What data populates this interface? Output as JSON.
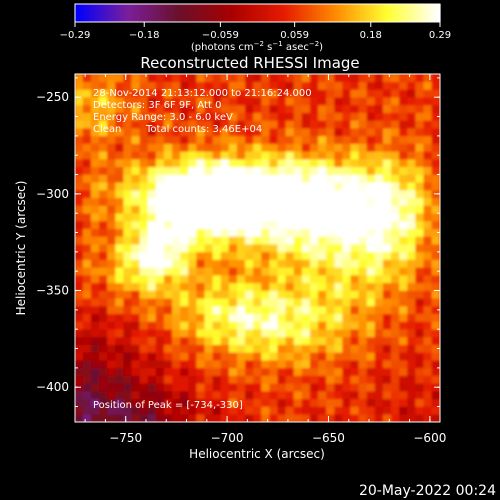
{
  "chart_data": {
    "type": "heatmap",
    "title": "Reconstructed RHESSI Image",
    "xlabel": "Heliocentric X (arcsec)",
    "ylabel": "Heliocentric Y (arcsec)",
    "xlim": [
      -775,
      -595
    ],
    "ylim": [
      -418,
      -238
    ],
    "x_ticks": [
      -750,
      -700,
      -650,
      -600
    ],
    "y_ticks": [
      -250,
      -300,
      -350,
      -400
    ],
    "x_tick_labels": [
      "−750",
      "−700",
      "−650",
      "−600"
    ],
    "y_tick_labels": [
      "−250",
      "−300",
      "−350",
      "−400"
    ],
    "grid": false,
    "colorbar": {
      "range": [
        -0.29,
        0.29
      ],
      "ticks": [
        -0.29,
        -0.18,
        -0.059,
        0.059,
        0.18,
        0.29
      ],
      "tick_labels": [
        "−0.29",
        "−0.18",
        "−0.059",
        "0.059",
        "0.18",
        "0.29"
      ],
      "unit_main": "(photons cm",
      "unit_exp1": "−2",
      "unit_mid1": " s",
      "unit_exp2": "−1",
      "unit_mid2": " asec",
      "unit_exp3": "−2",
      "unit_end": ")",
      "colors": [
        "#0000ff",
        "#7a1f9a",
        "#6b0f2a",
        "#a80000",
        "#e61a00",
        "#ff8a00",
        "#ffff30",
        "#ffffff"
      ]
    },
    "annotations": {
      "time": "28-Nov-2014 21:13:12.000 to 21:16:24.000",
      "detectors": "Detectors: 3F 6F 9F, Att 0",
      "energy": "Energy Range: 3.0 - 6.0 keV",
      "method": "Clean",
      "counts": "Total counts: 3.46E+04",
      "peak": "Position of Peak = [-734,-330]"
    },
    "peak": {
      "x": -734,
      "y": -330
    }
  },
  "footer": {
    "date": "20-May-2022 00:24"
  }
}
